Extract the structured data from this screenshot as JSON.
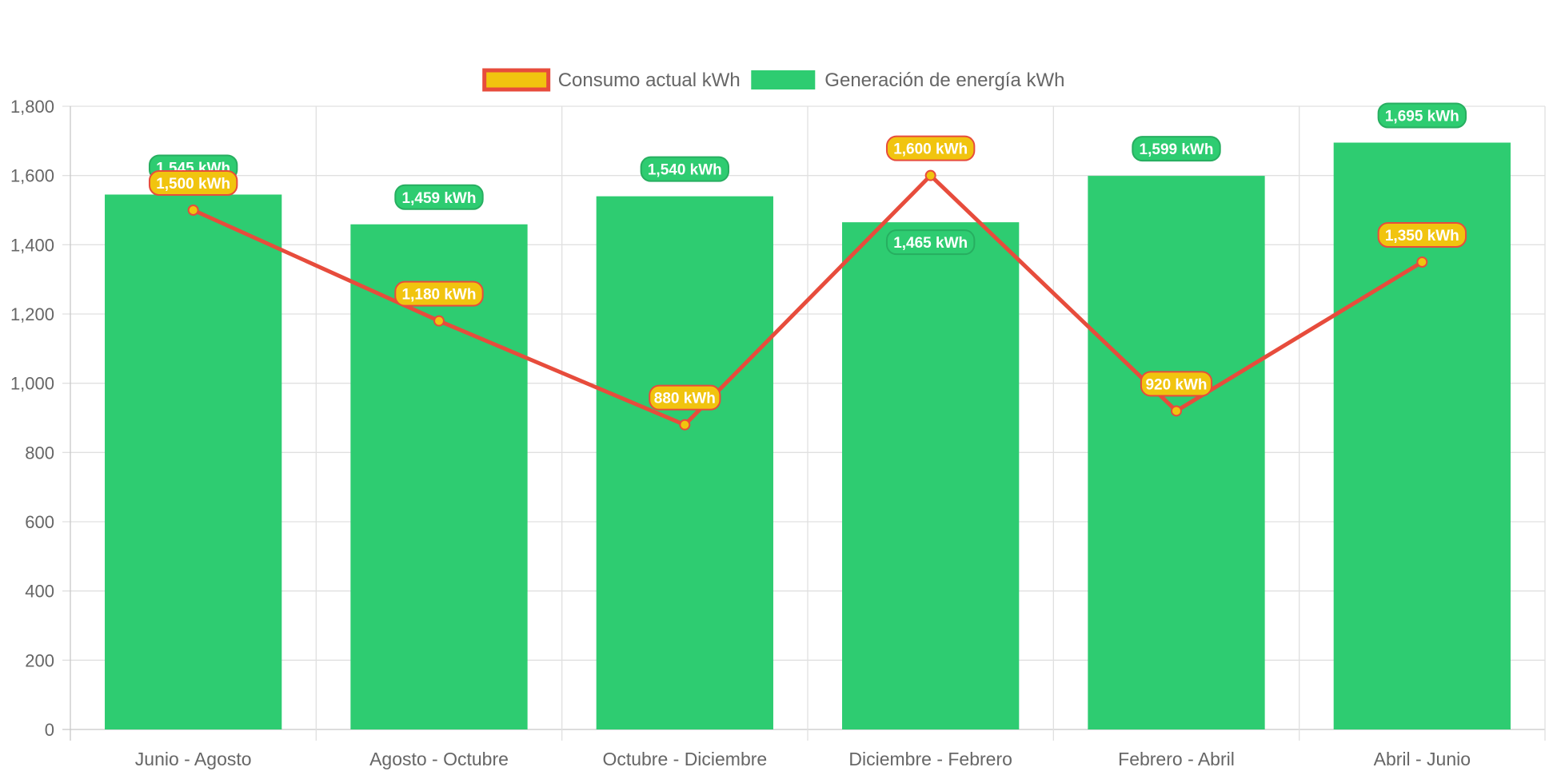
{
  "chart_data": {
    "type": "bar",
    "categories": [
      "Junio - Agosto",
      "Agosto - Octubre",
      "Octubre - Diciembre",
      "Diciembre - Febrero",
      "Febrero - Abril",
      "Abril - Junio"
    ],
    "series": [
      {
        "name": "Consumo actual kWh",
        "type": "line",
        "values": [
          1500,
          1180,
          880,
          1600,
          920,
          1350
        ],
        "labels": [
          "1,500 kWh",
          "1,180 kWh",
          "880 kWh",
          "1,600 kWh",
          "920 kWh",
          "1,350 kWh"
        ],
        "color": "#e74c3c",
        "fill": "#f1c40f"
      },
      {
        "name": "Generación de energía kWh",
        "type": "bar",
        "values": [
          1545,
          1459,
          1540,
          1465,
          1599,
          1695
        ],
        "labels": [
          "1,545 kWh",
          "1,459 kWh",
          "1,540 kWh",
          "1,465 kWh",
          "1,599 kWh",
          "1,695 kWh"
        ],
        "color": "#2ecc71"
      }
    ],
    "ylim": [
      0,
      1800
    ],
    "yticks": [
      0,
      200,
      400,
      600,
      800,
      1000,
      1200,
      1400,
      1600,
      1800
    ],
    "ytick_labels": [
      "0",
      "200",
      "400",
      "600",
      "800",
      "1,000",
      "1,200",
      "1,400",
      "1,600",
      "1,800"
    ],
    "grid": true,
    "legend_position": "top-center",
    "title": "",
    "xlabel": "",
    "ylabel": ""
  }
}
